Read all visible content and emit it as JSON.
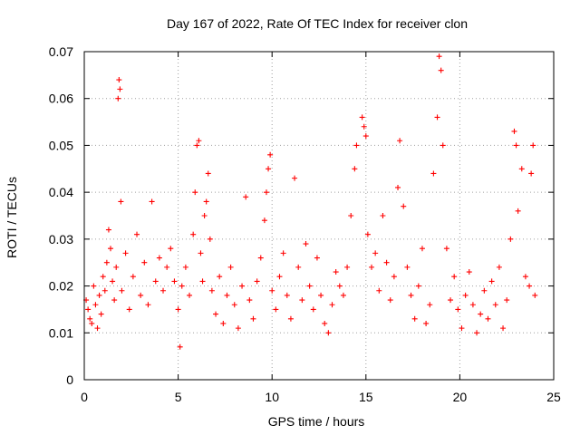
{
  "chart_data": {
    "type": "scatter",
    "title": "Day 167 of 2022, Rate Of TEC Index for receiver clon",
    "xlabel": "GPS time / hours",
    "ylabel": "ROTI / TECUs",
    "xlim": [
      0,
      25
    ],
    "ylim": [
      0,
      0.07
    ],
    "xticks": [
      0,
      5,
      10,
      15,
      20,
      25
    ],
    "yticks": [
      0,
      0.01,
      0.02,
      0.03,
      0.04,
      0.05,
      0.06,
      0.07
    ],
    "xtick_labels": [
      "0",
      "5",
      "10",
      "15",
      "20",
      "25"
    ],
    "ytick_labels": [
      "0",
      "0.01",
      "0.02",
      "0.03",
      "0.04",
      "0.05",
      "0.06",
      "0.07"
    ],
    "grid": true,
    "marker": "+",
    "color": "#ff0000",
    "points": [
      [
        0.1,
        0.017
      ],
      [
        0.2,
        0.015
      ],
      [
        0.3,
        0.013
      ],
      [
        0.4,
        0.012
      ],
      [
        0.5,
        0.02
      ],
      [
        0.6,
        0.016
      ],
      [
        0.7,
        0.011
      ],
      [
        0.8,
        0.018
      ],
      [
        0.9,
        0.014
      ],
      [
        1.0,
        0.022
      ],
      [
        1.1,
        0.019
      ],
      [
        1.2,
        0.025
      ],
      [
        1.3,
        0.032
      ],
      [
        1.4,
        0.028
      ],
      [
        1.5,
        0.021
      ],
      [
        1.6,
        0.017
      ],
      [
        1.7,
        0.024
      ],
      [
        1.8,
        0.06
      ],
      [
        1.85,
        0.064
      ],
      [
        1.9,
        0.062
      ],
      [
        1.95,
        0.038
      ],
      [
        2.0,
        0.019
      ],
      [
        2.2,
        0.027
      ],
      [
        2.4,
        0.015
      ],
      [
        2.6,
        0.022
      ],
      [
        2.8,
        0.031
      ],
      [
        3.0,
        0.018
      ],
      [
        3.2,
        0.025
      ],
      [
        3.4,
        0.016
      ],
      [
        3.6,
        0.038
      ],
      [
        3.8,
        0.021
      ],
      [
        4.0,
        0.026
      ],
      [
        4.2,
        0.019
      ],
      [
        4.4,
        0.024
      ],
      [
        4.6,
        0.028
      ],
      [
        4.8,
        0.021
      ],
      [
        5.0,
        0.015
      ],
      [
        5.1,
        0.007
      ],
      [
        5.2,
        0.02
      ],
      [
        5.4,
        0.024
      ],
      [
        5.6,
        0.018
      ],
      [
        5.8,
        0.031
      ],
      [
        5.9,
        0.04
      ],
      [
        6.0,
        0.05
      ],
      [
        6.1,
        0.051
      ],
      [
        6.2,
        0.027
      ],
      [
        6.3,
        0.021
      ],
      [
        6.4,
        0.035
      ],
      [
        6.5,
        0.038
      ],
      [
        6.6,
        0.044
      ],
      [
        6.7,
        0.03
      ],
      [
        6.8,
        0.019
      ],
      [
        7.0,
        0.014
      ],
      [
        7.2,
        0.022
      ],
      [
        7.4,
        0.012
      ],
      [
        7.6,
        0.018
      ],
      [
        7.8,
        0.024
      ],
      [
        8.0,
        0.016
      ],
      [
        8.2,
        0.011
      ],
      [
        8.4,
        0.02
      ],
      [
        8.6,
        0.039
      ],
      [
        8.8,
        0.017
      ],
      [
        9.0,
        0.013
      ],
      [
        9.2,
        0.021
      ],
      [
        9.4,
        0.026
      ],
      [
        9.6,
        0.034
      ],
      [
        9.7,
        0.04
      ],
      [
        9.8,
        0.045
      ],
      [
        9.9,
        0.048
      ],
      [
        10.0,
        0.019
      ],
      [
        10.2,
        0.015
      ],
      [
        10.4,
        0.022
      ],
      [
        10.6,
        0.027
      ],
      [
        10.8,
        0.018
      ],
      [
        11.0,
        0.013
      ],
      [
        11.2,
        0.043
      ],
      [
        11.4,
        0.024
      ],
      [
        11.6,
        0.017
      ],
      [
        11.8,
        0.029
      ],
      [
        12.0,
        0.02
      ],
      [
        12.2,
        0.015
      ],
      [
        12.4,
        0.026
      ],
      [
        12.6,
        0.018
      ],
      [
        12.8,
        0.012
      ],
      [
        13.0,
        0.01
      ],
      [
        13.2,
        0.016
      ],
      [
        13.4,
        0.023
      ],
      [
        13.6,
        0.02
      ],
      [
        13.8,
        0.018
      ],
      [
        14.0,
        0.024
      ],
      [
        14.2,
        0.035
      ],
      [
        14.4,
        0.045
      ],
      [
        14.5,
        0.05
      ],
      [
        14.8,
        0.056
      ],
      [
        14.9,
        0.054
      ],
      [
        15.0,
        0.052
      ],
      [
        15.1,
        0.031
      ],
      [
        15.3,
        0.024
      ],
      [
        15.5,
        0.027
      ],
      [
        15.7,
        0.019
      ],
      [
        15.9,
        0.035
      ],
      [
        16.1,
        0.025
      ],
      [
        16.3,
        0.017
      ],
      [
        16.5,
        0.022
      ],
      [
        16.7,
        0.041
      ],
      [
        16.8,
        0.051
      ],
      [
        17.0,
        0.037
      ],
      [
        17.2,
        0.024
      ],
      [
        17.4,
        0.018
      ],
      [
        17.6,
        0.013
      ],
      [
        17.8,
        0.02
      ],
      [
        18.0,
        0.028
      ],
      [
        18.2,
        0.012
      ],
      [
        18.4,
        0.016
      ],
      [
        18.6,
        0.044
      ],
      [
        18.8,
        0.056
      ],
      [
        18.9,
        0.069
      ],
      [
        19.0,
        0.066
      ],
      [
        19.1,
        0.05
      ],
      [
        19.3,
        0.028
      ],
      [
        19.5,
        0.017
      ],
      [
        19.7,
        0.022
      ],
      [
        19.9,
        0.015
      ],
      [
        20.1,
        0.011
      ],
      [
        20.3,
        0.018
      ],
      [
        20.5,
        0.023
      ],
      [
        20.7,
        0.016
      ],
      [
        20.9,
        0.01
      ],
      [
        21.1,
        0.014
      ],
      [
        21.3,
        0.019
      ],
      [
        21.5,
        0.013
      ],
      [
        21.7,
        0.021
      ],
      [
        21.9,
        0.016
      ],
      [
        22.1,
        0.024
      ],
      [
        22.3,
        0.011
      ],
      [
        22.5,
        0.017
      ],
      [
        22.7,
        0.03
      ],
      [
        22.9,
        0.053
      ],
      [
        23.0,
        0.05
      ],
      [
        23.1,
        0.036
      ],
      [
        23.3,
        0.045
      ],
      [
        23.5,
        0.022
      ],
      [
        23.7,
        0.02
      ],
      [
        23.8,
        0.044
      ],
      [
        23.9,
        0.05
      ],
      [
        24.0,
        0.018
      ]
    ]
  }
}
